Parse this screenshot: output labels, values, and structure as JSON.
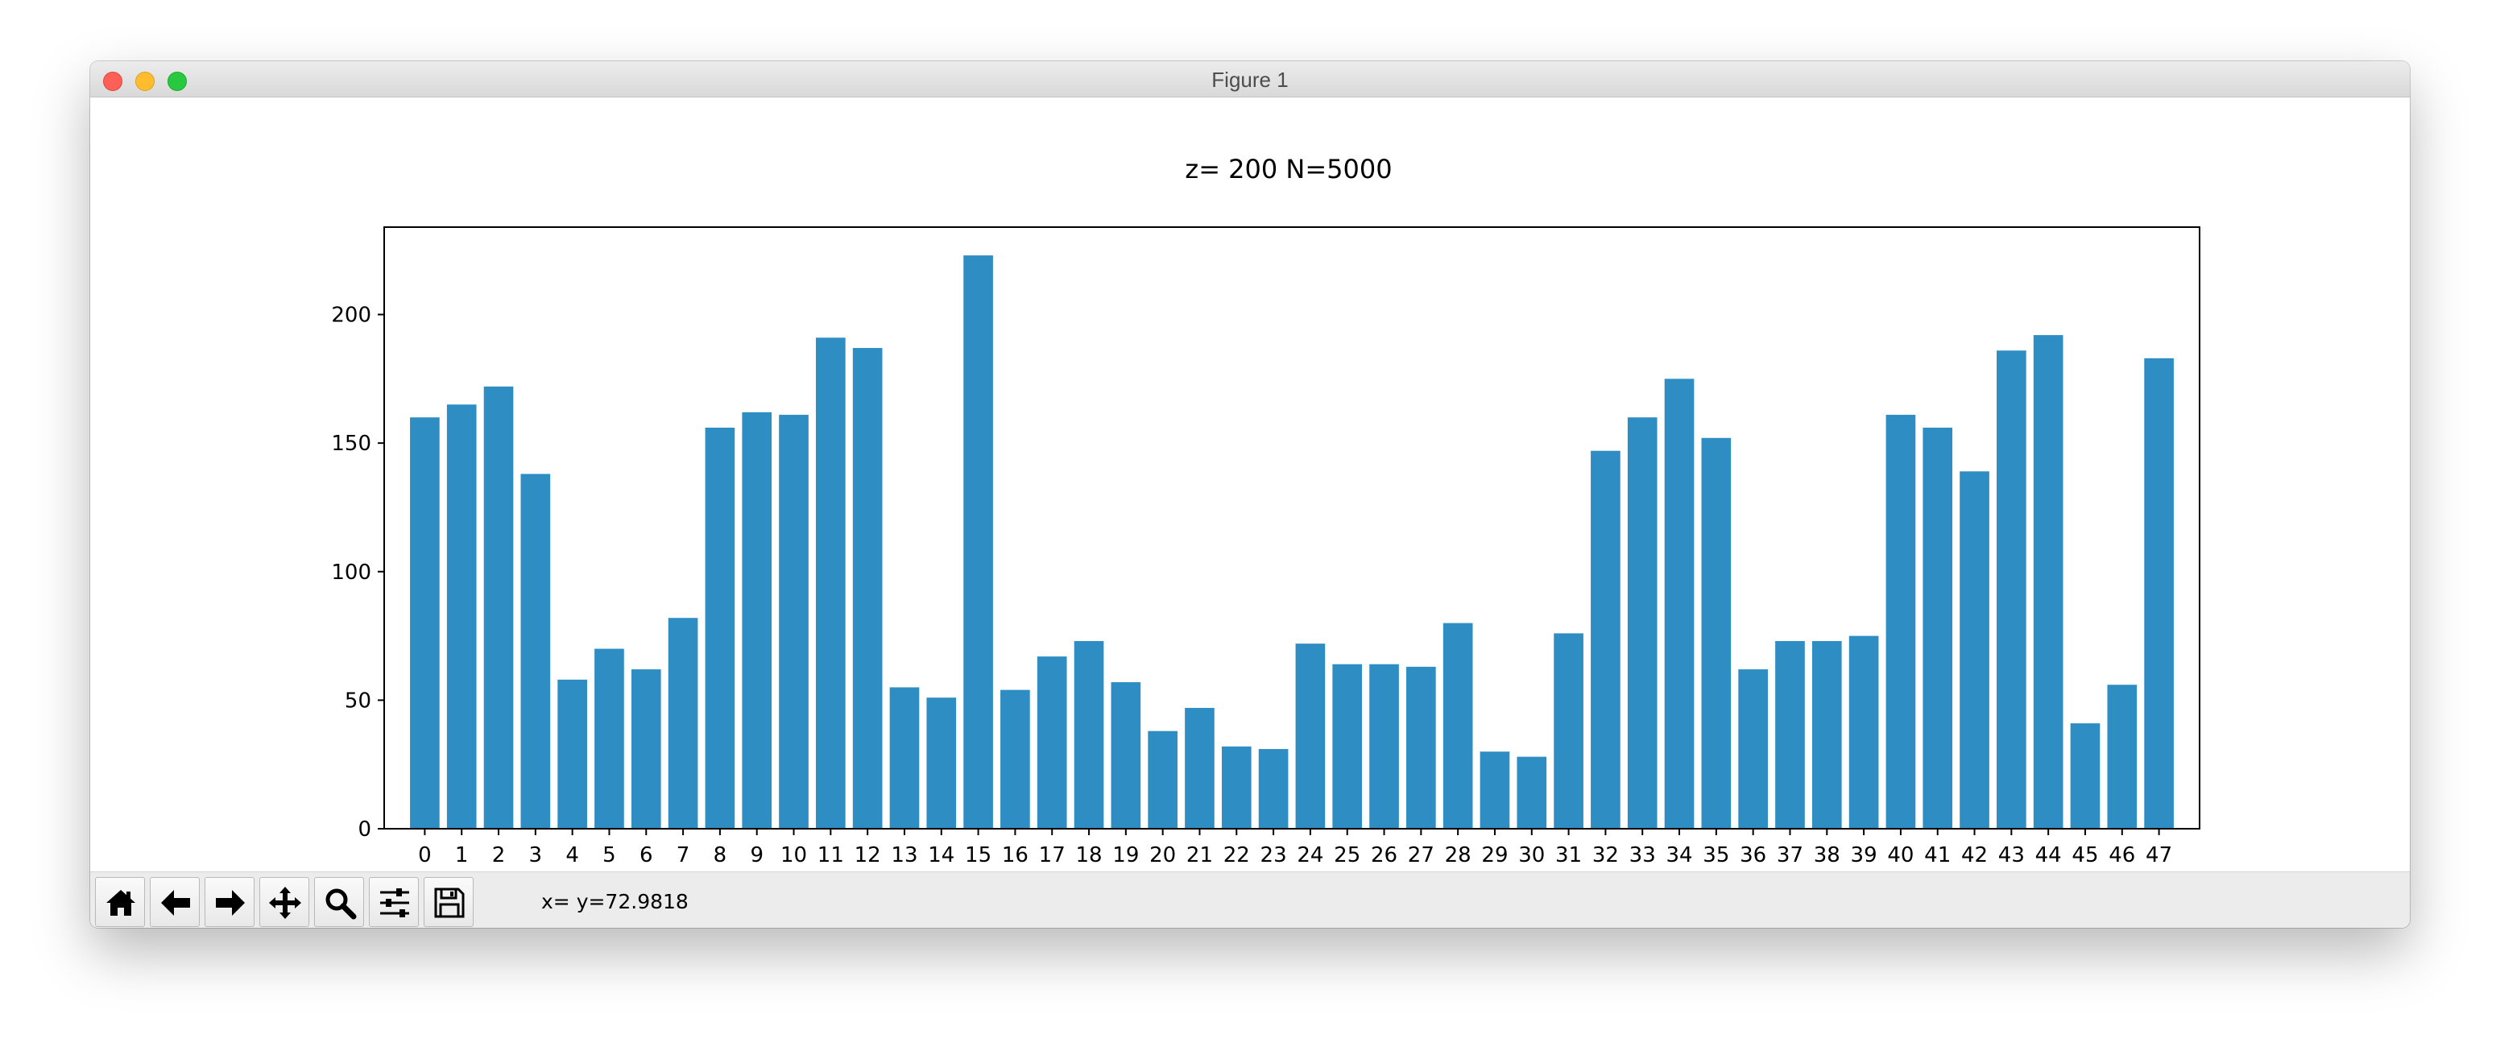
{
  "window": {
    "title": "Figure 1"
  },
  "toolbar": {
    "buttons": [
      {
        "name": "home",
        "icon": "home-icon"
      },
      {
        "name": "back",
        "icon": "arrow-left-icon"
      },
      {
        "name": "forward",
        "icon": "arrow-right-icon"
      },
      {
        "name": "pan",
        "icon": "move-icon"
      },
      {
        "name": "zoom",
        "icon": "zoom-icon"
      },
      {
        "name": "configure-subplots",
        "icon": "sliders-icon"
      },
      {
        "name": "save",
        "icon": "save-icon"
      }
    ],
    "coordinates": "x= y=72.9818"
  },
  "chart_data": {
    "type": "bar",
    "title": "z= 200 N=5000",
    "xlabel": "",
    "ylabel": "",
    "color": "#2e8ec4",
    "categories": [
      "0",
      "1",
      "2",
      "3",
      "4",
      "5",
      "6",
      "7",
      "8",
      "9",
      "10",
      "11",
      "12",
      "13",
      "14",
      "15",
      "16",
      "17",
      "18",
      "19",
      "20",
      "21",
      "22",
      "23",
      "24",
      "25",
      "26",
      "27",
      "28",
      "29",
      "30",
      "31",
      "32",
      "33",
      "34",
      "35",
      "36",
      "37",
      "38",
      "39",
      "40",
      "41",
      "42",
      "43",
      "44",
      "45",
      "46",
      "47"
    ],
    "values": [
      160,
      165,
      172,
      138,
      58,
      70,
      62,
      82,
      156,
      162,
      161,
      191,
      187,
      55,
      51,
      223,
      54,
      67,
      73,
      57,
      38,
      47,
      32,
      31,
      72,
      64,
      64,
      63,
      80,
      30,
      28,
      76,
      147,
      160,
      175,
      152,
      62,
      73,
      73,
      75,
      161,
      156,
      139,
      186,
      192,
      41,
      56,
      183
    ],
    "yticks": [
      0,
      50,
      100,
      150,
      200
    ],
    "ylim": [
      0,
      234
    ],
    "grid": false
  }
}
